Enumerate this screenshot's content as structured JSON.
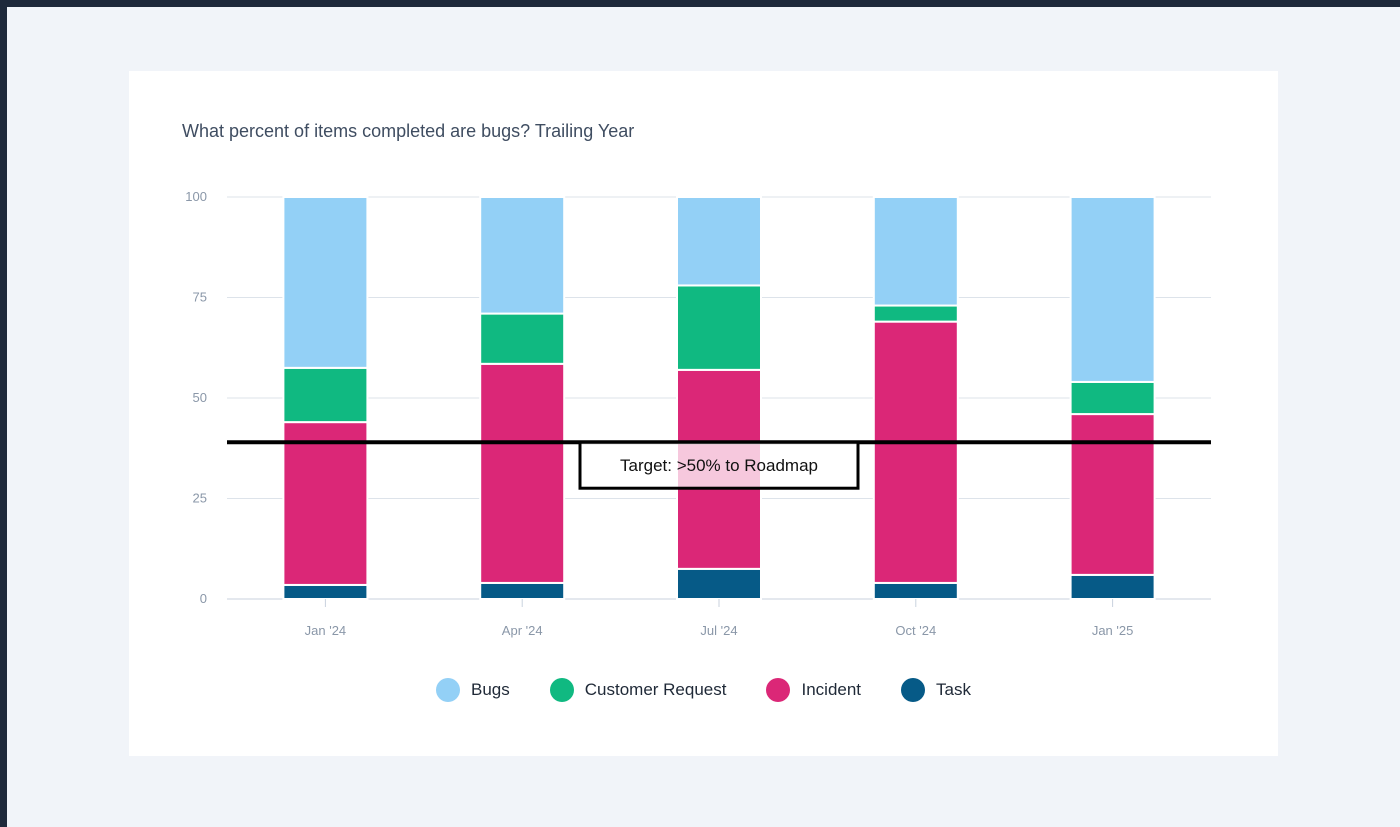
{
  "chart_data": {
    "type": "bar",
    "stacked": true,
    "title": "What percent of items completed are bugs? Trailing Year",
    "xlabel": "",
    "ylabel": "",
    "ylim": [
      0,
      100
    ],
    "yticks": [
      0,
      25,
      50,
      75,
      100
    ],
    "grid": true,
    "legend_position": "bottom",
    "categories": [
      "Jan '24",
      "Apr '24",
      "Jul '24",
      "Oct '24",
      "Jan '25"
    ],
    "series": [
      {
        "name": "Task",
        "color": "#065a87",
        "values": [
          3.5,
          4,
          7.5,
          4,
          6
        ]
      },
      {
        "name": "Incident",
        "color": "#db2777",
        "values": [
          40.5,
          54.5,
          49.5,
          65,
          40
        ]
      },
      {
        "name": "Customer Request",
        "color": "#10b981",
        "values": [
          13.5,
          12.5,
          21,
          4,
          8
        ]
      },
      {
        "name": "Bugs",
        "color": "#93d0f6",
        "values": [
          42.5,
          29,
          22,
          27,
          46
        ]
      }
    ],
    "legend_order": [
      "Bugs",
      "Customer Request",
      "Incident",
      "Task"
    ],
    "annotations": [
      {
        "type": "hline",
        "y": 39,
        "label": "Target: >50% to Roadmap",
        "color": "#000000"
      }
    ]
  }
}
